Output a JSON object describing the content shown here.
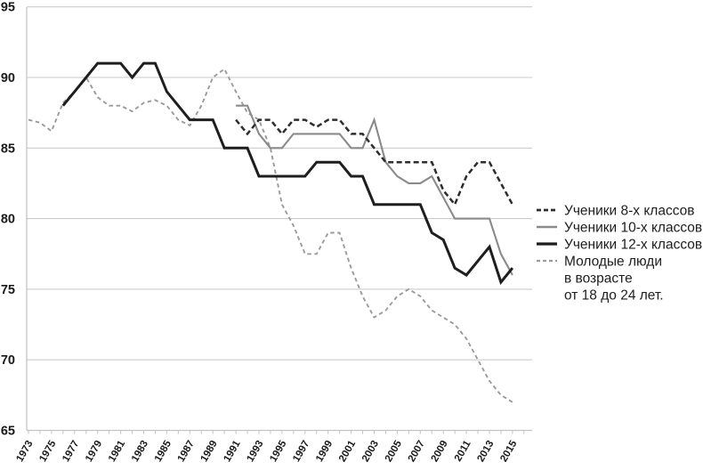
{
  "page": {
    "background": "#ffffff",
    "text_color": "#1a1a1a"
  },
  "axes": {
    "y_tick_labels": [
      "95",
      "90",
      "85",
      "80",
      "75",
      "70",
      "65"
    ],
    "x_tick_labels": [
      "1973",
      "1975",
      "1977",
      "1979",
      "1981",
      "1983",
      "1985",
      "1987",
      "1989",
      "1991",
      "1993",
      "1995",
      "1997",
      "1999",
      "2001",
      "2003",
      "2005",
      "2007",
      "2009",
      "2011",
      "2013",
      "2015"
    ],
    "axis_color": "#c2c2c2",
    "grid_color": "#cbcbcb"
  },
  "legend": {
    "items": [
      {
        "lines": [
          "Ученики 8-х классов"
        ],
        "swatch": "dashed-dark"
      },
      {
        "lines": [
          "Ученики 10-х классов"
        ],
        "swatch": "solid-gray"
      },
      {
        "lines": [
          "Ученики 12-х классов"
        ],
        "swatch": "solid-black"
      },
      {
        "lines": [
          "Молодые люди",
          "в возрасте",
          "от 18 до 24 лет."
        ],
        "swatch": "dashed-light"
      }
    ]
  },
  "chart_data": {
    "type": "line",
    "title": "",
    "xlabel": "",
    "ylabel": "",
    "x_start": 1973,
    "x_end": 2015,
    "x_tick_step_labeled": 2,
    "ylim": [
      65,
      95
    ],
    "yticks": [
      65,
      70,
      75,
      80,
      85,
      90,
      95
    ],
    "grid": "horizontal",
    "legend_position": "right",
    "series": [
      {
        "name": "Ученики 8-х классов",
        "style": "dashed",
        "color": "#2d2d2d",
        "width": 2.5,
        "dash": "6,3.5",
        "start_year": 1991,
        "values": [
          87,
          86,
          87,
          87,
          86,
          87,
          87,
          86.5,
          87,
          87,
          86,
          86,
          85,
          84,
          84,
          84,
          84,
          84,
          82,
          81,
          83,
          84,
          84,
          82.5,
          81
        ]
      },
      {
        "name": "Ученики 10-х классов",
        "style": "solid",
        "color": "#8a8a8a",
        "width": 2.1,
        "dash": "",
        "start_year": 1991,
        "values": [
          88,
          88,
          86,
          85,
          85,
          86,
          86,
          86,
          86,
          86,
          85,
          85,
          87,
          84,
          83,
          82.5,
          82.5,
          83,
          81.5,
          80,
          80,
          80,
          80,
          77.5,
          76
        ]
      },
      {
        "name": "Ученики 12-х классов",
        "style": "solid",
        "color": "#1e1e1e",
        "width": 3,
        "dash": "",
        "start_year": 1976,
        "values": [
          88,
          89,
          90,
          91,
          91,
          91,
          90,
          91,
          91,
          89,
          88,
          87,
          87,
          87,
          85,
          85,
          85,
          83,
          83,
          83,
          83,
          83,
          84,
          84,
          84,
          83,
          83,
          81,
          81,
          81,
          81,
          81,
          79,
          78.5,
          76.5,
          76,
          77,
          78,
          75.5,
          76.5
        ]
      },
      {
        "name": "Молодые люди в возрасте от 18 до 24 лет.",
        "style": "dashed",
        "color": "#9b9b9b",
        "width": 1.9,
        "dash": "4.5,3.5",
        "start_year": 1973,
        "values": [
          87,
          86.8,
          86.2,
          88.2,
          89,
          90,
          88.6,
          88,
          88,
          87.6,
          88.2,
          88.4,
          88,
          87,
          86.6,
          88,
          90,
          90.6,
          89,
          87.5,
          87,
          85,
          81,
          79.5,
          77.5,
          77.5,
          79,
          79,
          76.5,
          74.5,
          73,
          73.5,
          74.5,
          75,
          74.5,
          73.5,
          73,
          72.5,
          71.5,
          70,
          68.5,
          67.5,
          67
        ]
      }
    ]
  }
}
